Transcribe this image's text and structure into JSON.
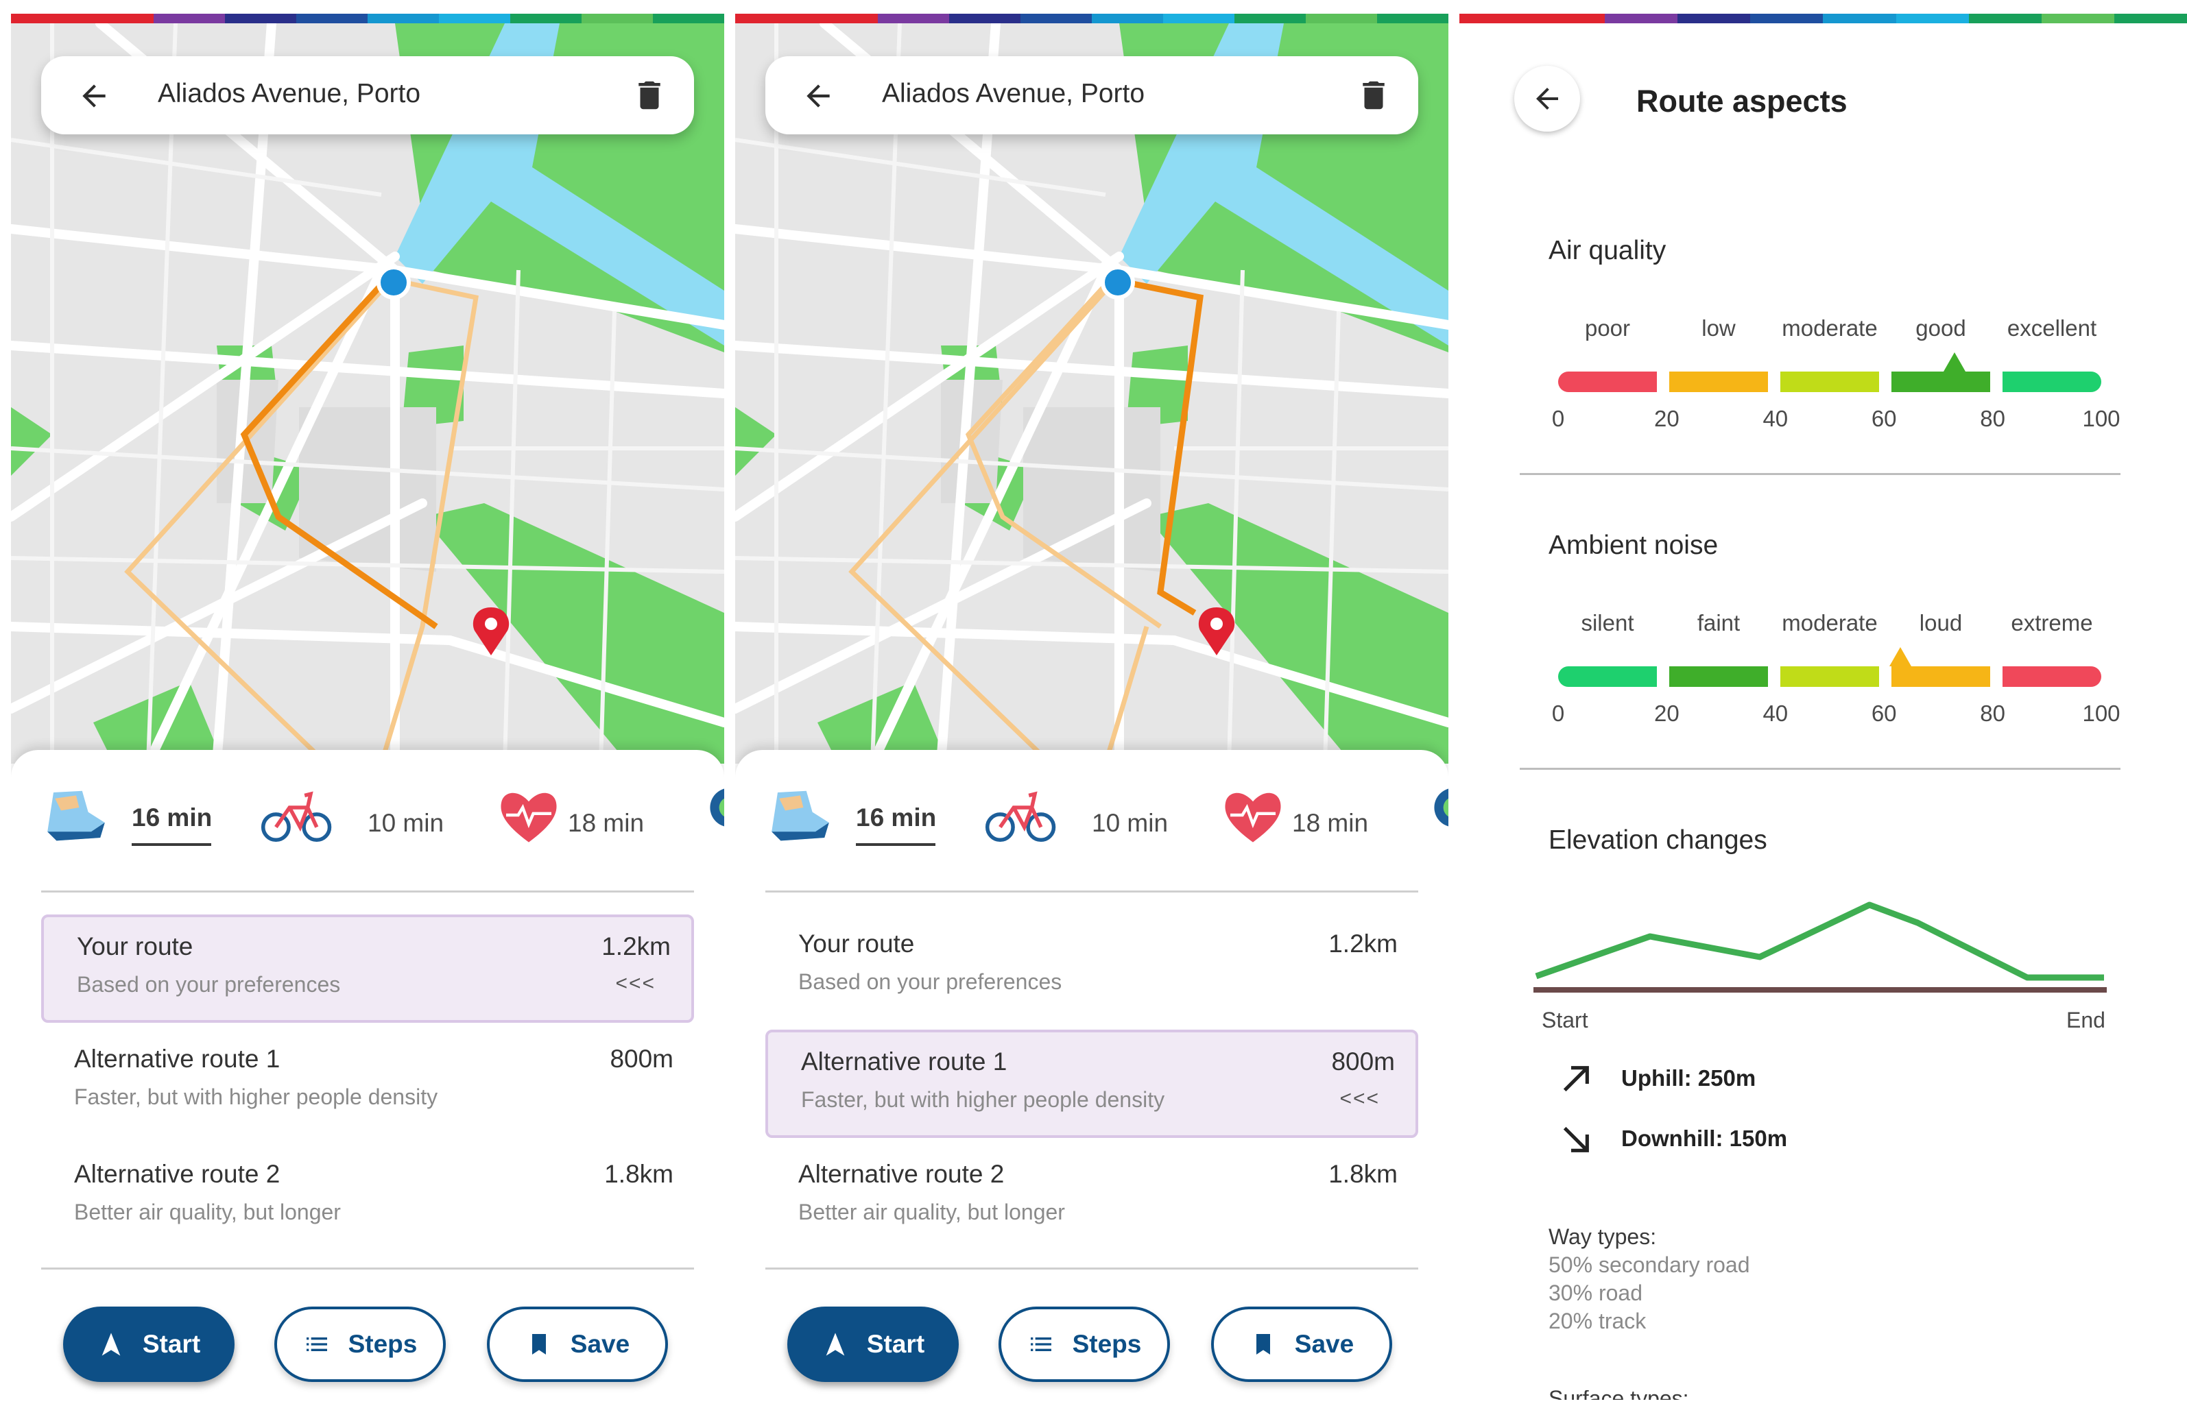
{
  "panels": [
    {
      "search": {
        "title": "Aliados Avenue, Porto"
      },
      "modes": [
        {
          "icon": "walking-shoe-icon",
          "time": "16 min",
          "selected": true
        },
        {
          "icon": "bicycle-icon",
          "time": "10 min",
          "selected": false
        },
        {
          "icon": "heart-health-icon",
          "time": "18 min",
          "selected": false
        }
      ],
      "routes": [
        {
          "title": "Your route",
          "subtitle": "Based on your preferences",
          "distance": "1.2km",
          "selected": true,
          "arrows": "<<<"
        },
        {
          "title": "Alternative route 1",
          "subtitle": "Faster, but with higher people density",
          "distance": "800m",
          "selected": false,
          "arrows": ""
        },
        {
          "title": "Alternative route 2",
          "subtitle": "Better air quality, but longer",
          "distance": "1.8km",
          "selected": false,
          "arrows": ""
        }
      ],
      "buttons": {
        "start": "Start",
        "steps": "Steps",
        "save": "Save"
      }
    },
    {
      "search": {
        "title": "Aliados Avenue, Porto"
      },
      "modes": [
        {
          "icon": "walking-shoe-icon",
          "time": "16 min",
          "selected": true
        },
        {
          "icon": "bicycle-icon",
          "time": "10 min",
          "selected": false
        },
        {
          "icon": "heart-health-icon",
          "time": "18 min",
          "selected": false
        }
      ],
      "routes": [
        {
          "title": "Your route",
          "subtitle": "Based on your preferences",
          "distance": "1.2km",
          "selected": false,
          "arrows": ""
        },
        {
          "title": "Alternative route 1",
          "subtitle": "Faster, but with higher people density",
          "distance": "800m",
          "selected": true,
          "arrows": "<<<"
        },
        {
          "title": "Alternative route 2",
          "subtitle": "Better air quality, but longer",
          "distance": "1.8km",
          "selected": false,
          "arrows": ""
        }
      ],
      "buttons": {
        "start": "Start",
        "steps": "Steps",
        "save": "Save"
      }
    }
  ],
  "aspects": {
    "title": "Route aspects",
    "air_quality": {
      "heading": "Air quality",
      "labels": [
        "poor",
        "low",
        "moderate",
        "good",
        "excellent"
      ],
      "colors": [
        "#f0485a",
        "#f6b516",
        "#c0dc18",
        "#3fae2a",
        "#1ed06e"
      ],
      "ticks": [
        "0",
        "20",
        "40",
        "60",
        "80",
        "100"
      ],
      "marker_value": 73
    },
    "ambient_noise": {
      "heading": "Ambient noise",
      "labels": [
        "silent",
        "faint",
        "moderate",
        "loud",
        "extreme"
      ],
      "colors": [
        "#1ed06e",
        "#3fae2a",
        "#c0dc18",
        "#f6b516",
        "#f0485a"
      ],
      "ticks": [
        "0",
        "20",
        "40",
        "60",
        "80",
        "100"
      ],
      "marker_value": 63
    },
    "elevation": {
      "heading": "Elevation changes",
      "start": "Start",
      "end": "End",
      "uphill": "Uphill: 250m",
      "downhill": "Downhill: 150m"
    },
    "way_types": {
      "heading": "Way types:",
      "items": [
        "50% secondary road",
        "30% road",
        "20% track"
      ]
    },
    "cutoff": "Surface types:"
  },
  "colors": {
    "primary": "#0d4f86",
    "route_active": "#f08a12",
    "route_alt": "#f7c98a",
    "park": "#6fd36a",
    "water": "#8fdcf4",
    "selected_bg": "#f1eaf5"
  }
}
